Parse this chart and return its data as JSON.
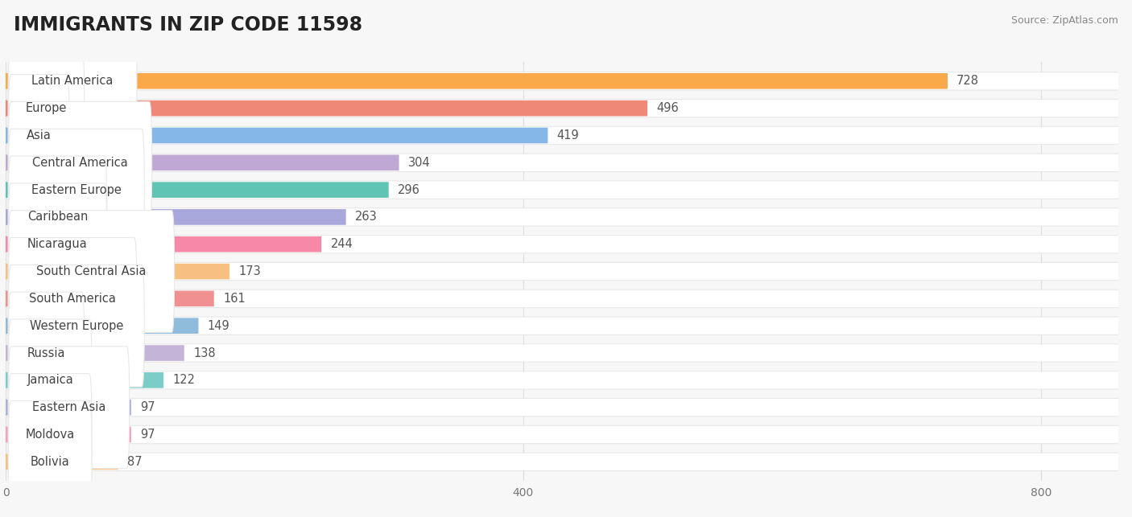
{
  "title": "IMMIGRANTS IN ZIP CODE 11598",
  "source": "Source: ZipAtlas.com",
  "categories": [
    "Latin America",
    "Europe",
    "Asia",
    "Central America",
    "Eastern Europe",
    "Caribbean",
    "Nicaragua",
    "South Central Asia",
    "South America",
    "Western Europe",
    "Russia",
    "Jamaica",
    "Eastern Asia",
    "Moldova",
    "Bolivia"
  ],
  "values": [
    728,
    496,
    419,
    304,
    296,
    263,
    244,
    173,
    161,
    149,
    138,
    122,
    97,
    97,
    87
  ],
  "bar_colors": [
    "#F9A84A",
    "#F08878",
    "#85B8E8",
    "#C0A8D4",
    "#5FC4B4",
    "#A8A8DC",
    "#F888A8",
    "#F8C080",
    "#F09090",
    "#90BCDC",
    "#C4B4D8",
    "#7CCCC8",
    "#A8B0DC",
    "#F8A0BC",
    "#F8C080"
  ],
  "dot_colors": [
    "#F9A84A",
    "#F08878",
    "#85B8E8",
    "#C0A8D4",
    "#5FC4B4",
    "#A8A8DC",
    "#F888A8",
    "#F8C080",
    "#F09090",
    "#90BCDC",
    "#C4B4D8",
    "#7CCCC8",
    "#A8B0DC",
    "#F8A0BC",
    "#F8C080"
  ],
  "xlim": [
    0,
    860
  ],
  "xticks": [
    0,
    400,
    800
  ],
  "background_color": "#f7f7f7",
  "row_bg_color": "#ffffff",
  "row_border_color": "#e8e8e8",
  "title_fontsize": 17,
  "label_fontsize": 10.5,
  "value_fontsize": 10.5,
  "tick_fontsize": 10
}
